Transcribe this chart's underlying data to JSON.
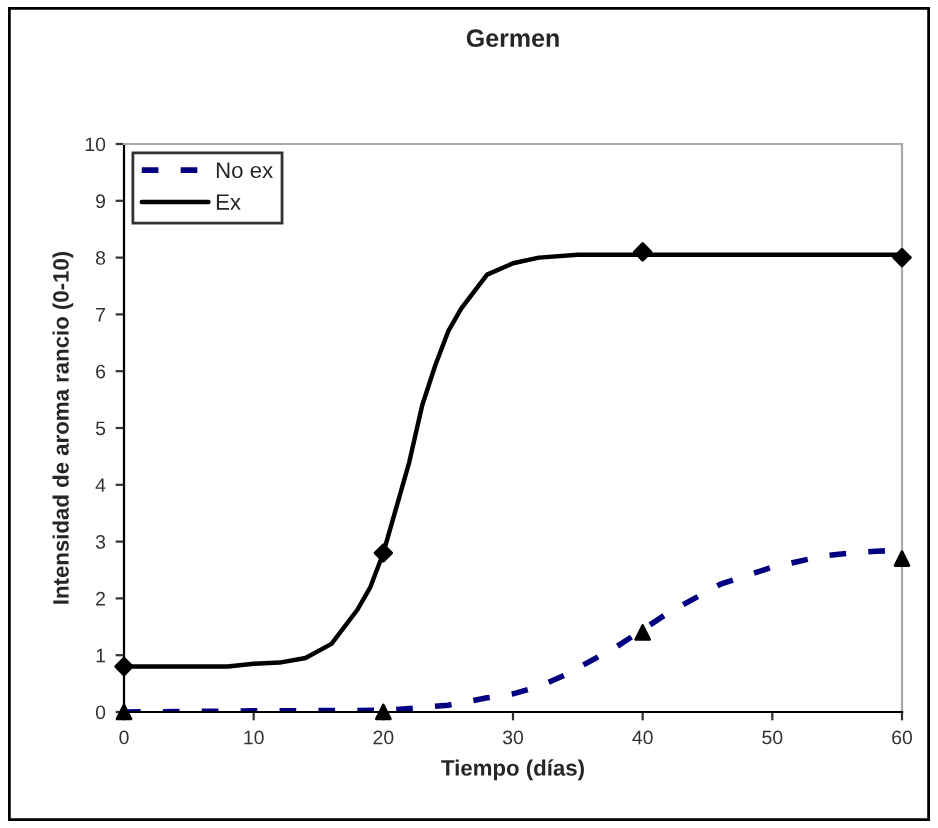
{
  "chart_data": {
    "type": "line",
    "title": "Germen",
    "xlabel": "Tiempo (días)",
    "ylabel": "Intensidad de aroma rancio (0-10)",
    "xlim": [
      0,
      60
    ],
    "xticks": [
      0,
      10,
      20,
      30,
      40,
      50,
      60
    ],
    "ylim": [
      0,
      10
    ],
    "yticks": [
      0,
      1,
      2,
      3,
      4,
      5,
      6,
      7,
      8,
      9,
      10
    ],
    "grid": false,
    "legend": "top left",
    "series": [
      {
        "name": "No ex",
        "color": "#000080",
        "line_style": "dashed",
        "marker": "none",
        "x": [
          0,
          10,
          20,
          22,
          25,
          28,
          30,
          32,
          34,
          36,
          38,
          40,
          42,
          44,
          46,
          48,
          50,
          52,
          54,
          56,
          58,
          60
        ],
        "values": [
          0,
          0.02,
          0.03,
          0.06,
          0.12,
          0.25,
          0.32,
          0.45,
          0.65,
          0.9,
          1.15,
          1.45,
          1.75,
          2.0,
          2.25,
          2.4,
          2.55,
          2.65,
          2.75,
          2.8,
          2.83,
          2.85
        ]
      },
      {
        "name": "Ex",
        "color": "#000000",
        "line_style": "solid",
        "marker": "none",
        "x": [
          0,
          8,
          10,
          12,
          14,
          16,
          18,
          19,
          20,
          21,
          22,
          23,
          24,
          25,
          26,
          28,
          30,
          32,
          35,
          60
        ],
        "values": [
          0.8,
          0.8,
          0.85,
          0.87,
          0.95,
          1.2,
          1.8,
          2.2,
          2.8,
          3.6,
          4.4,
          5.4,
          6.1,
          6.7,
          7.1,
          7.7,
          7.9,
          8.0,
          8.05,
          8.05
        ]
      },
      {
        "type": "scatter",
        "color": "#000000",
        "marker": "triangle",
        "x": [
          0,
          20,
          40,
          60
        ],
        "values": [
          0,
          0,
          1.4,
          2.7
        ]
      },
      {
        "type": "scatter",
        "color": "#000000",
        "marker": "diamond",
        "x": [
          0,
          20,
          40,
          60
        ],
        "values": [
          0.8,
          2.8,
          8.1,
          8.0
        ]
      }
    ]
  }
}
